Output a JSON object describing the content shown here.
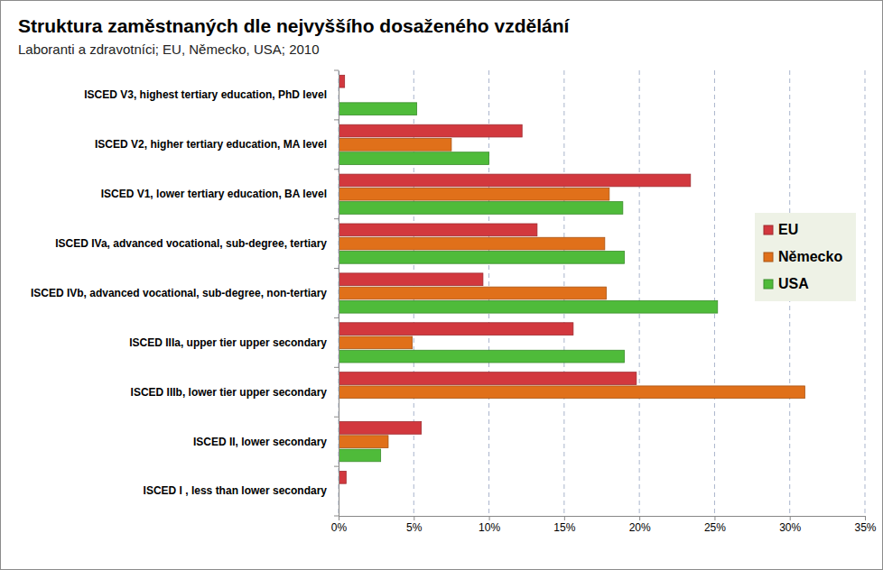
{
  "chart_data": {
    "type": "bar",
    "orientation": "horizontal",
    "title": "Struktura zaměstnaných dle nejvyššího dosaženého vzdělání",
    "subtitle": "Laboranti a zdravotníci; EU, Německo, USA; 2010",
    "categories": [
      "ISCED V3, highest tertiary education, PhD level",
      "ISCED V2, higher tertiary education, MA level",
      "ISCED V1, lower tertiary education, BA level",
      "ISCED IVa, advanced vocational, sub-degree, tertiary",
      "ISCED IVb, advanced vocational, sub-degree, non-tertiary",
      "ISCED IIIa, upper tier upper secondary",
      "ISCED IIIb, lower tier upper secondary",
      "ISCED II, lower secondary",
      "ISCED I , less than lower secondary"
    ],
    "series": [
      {
        "name": "EU",
        "color": "#d2383e",
        "values": [
          0.4,
          12.2,
          23.4,
          13.2,
          9.6,
          15.6,
          19.8,
          5.5,
          0.5
        ]
      },
      {
        "name": "Německo",
        "color": "#e0701a",
        "values": [
          0,
          7.5,
          18.0,
          17.7,
          17.8,
          4.9,
          31.0,
          3.3,
          0
        ]
      },
      {
        "name": "USA",
        "color": "#4fbb3a",
        "values": [
          5.2,
          10.0,
          18.9,
          19.0,
          25.2,
          19.0,
          0,
          2.8,
          0
        ]
      }
    ],
    "xlim": [
      0,
      35
    ],
    "xticks": [
      {
        "value": 0,
        "label": "0%"
      },
      {
        "value": 5,
        "label": "5%"
      },
      {
        "value": 10,
        "label": "10%"
      },
      {
        "value": 15,
        "label": "15%"
      },
      {
        "value": 20,
        "label": "20%"
      },
      {
        "value": 25,
        "label": "25%"
      },
      {
        "value": 30,
        "label": "30%"
      },
      {
        "value": 35,
        "label": "35%"
      }
    ],
    "grid": true,
    "legend": "right"
  }
}
